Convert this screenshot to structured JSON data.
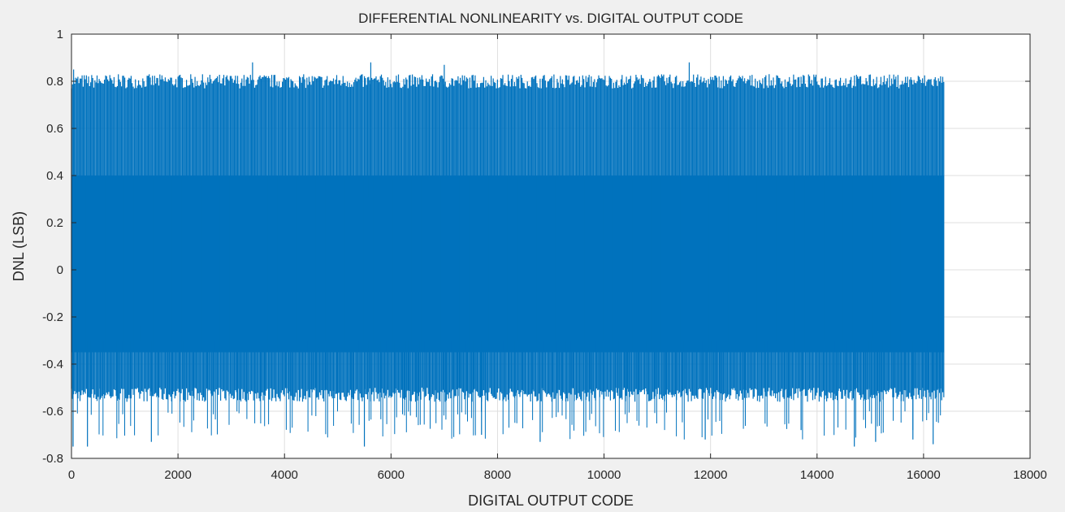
{
  "chart_data": {
    "type": "line",
    "title": "DIFFERENTIAL NONLINEARITY vs. DIGITAL OUTPUT CODE",
    "xlabel": "DIGITAL OUTPUT CODE",
    "ylabel": "DNL (LSB)",
    "xlim": [
      0,
      18000
    ],
    "ylim": [
      -0.8,
      1
    ],
    "xticks": [
      0,
      2000,
      4000,
      6000,
      8000,
      10000,
      12000,
      14000,
      16000,
      18000
    ],
    "yticks": [
      -0.8,
      -0.6,
      -0.4,
      -0.2,
      0,
      0.2,
      0.4,
      0.6,
      0.8,
      1
    ],
    "ytick_labels": [
      "-0.8",
      "-0.6",
      "-0.4",
      "-0.2",
      "0",
      "0.2",
      "0.4",
      "0.6",
      "0.8",
      "1"
    ],
    "grid": true,
    "line_color": "#0072bd",
    "series": [
      {
        "x_range": [
          0,
          16383
        ],
        "band": {
          "upper": 0.4,
          "lower": -0.35
        },
        "typical_max": 0.82,
        "typical_min": -0.56,
        "spikes": [
          {
            "x": 40,
            "y": 0.85
          },
          {
            "x": 1300,
            "y": -0.24
          },
          {
            "x": 3400,
            "y": 0.88
          },
          {
            "x": 5620,
            "y": 0.88
          },
          {
            "x": 5560,
            "y": 0.31
          },
          {
            "x": 7000,
            "y": 0.87
          },
          {
            "x": 11600,
            "y": 0.88
          },
          {
            "x": 30,
            "y": -0.75
          },
          {
            "x": 300,
            "y": -0.75
          },
          {
            "x": 1500,
            "y": -0.73
          },
          {
            "x": 5500,
            "y": -0.75
          },
          {
            "x": 7700,
            "y": -0.7
          },
          {
            "x": 8800,
            "y": -0.73
          },
          {
            "x": 11900,
            "y": -0.72
          },
          {
            "x": 13700,
            "y": -0.68
          },
          {
            "x": 14700,
            "y": -0.75
          },
          {
            "x": 15100,
            "y": -0.73
          },
          {
            "x": 15800,
            "y": -0.72
          },
          {
            "x": 16180,
            "y": -0.74
          }
        ]
      }
    ]
  }
}
